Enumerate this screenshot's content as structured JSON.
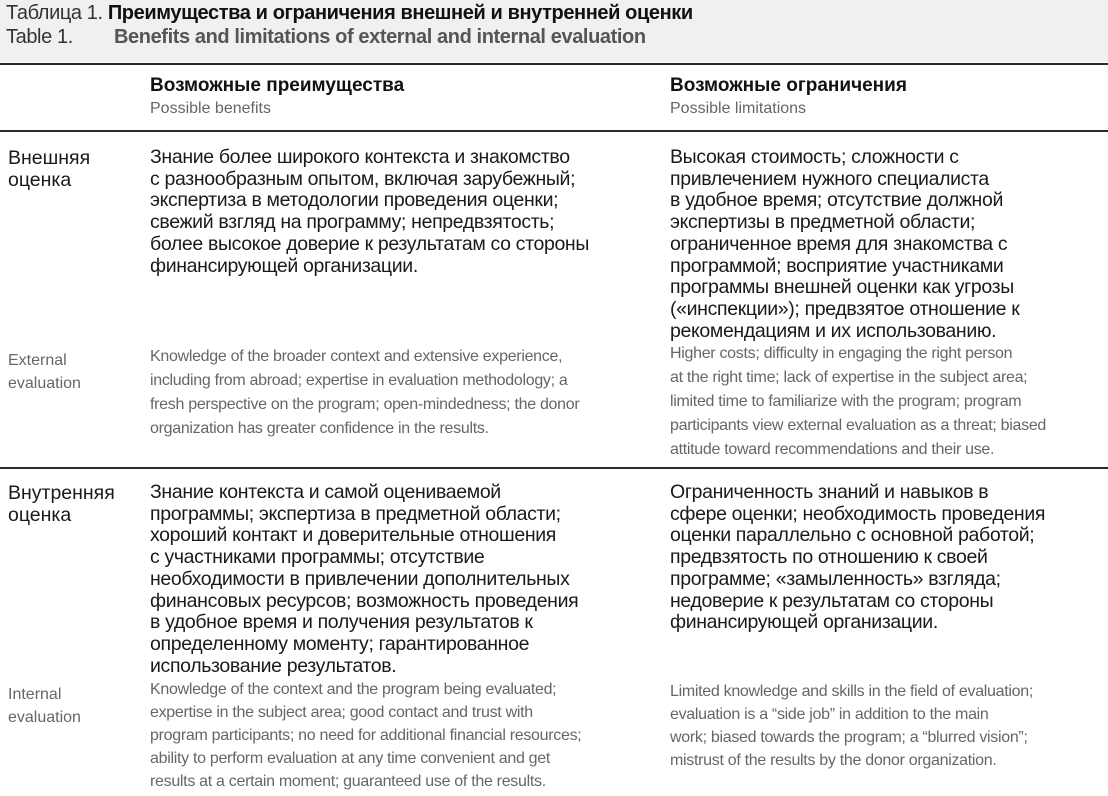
{
  "caption": {
    "ru_label": "Таблица 1. ",
    "ru_title": "Преимущества и ограничения внешней и внутренней оценки",
    "en_label": "Table 1.",
    "en_title": "Benefits and limitations of external and internal evaluation"
  },
  "header": {
    "col1_ru": "Возможные преимущества",
    "col1_en": "Possible benefits",
    "col2_ru": "Возможные ограничения",
    "col2_en": "Possible limitations"
  },
  "rows": [
    {
      "label_ru": [
        "Внешняя",
        "оценка"
      ],
      "label_en": [
        "External",
        "evaluation"
      ],
      "benefits_ru": [
        "Знание более широкого контекста и знакомство",
        "с разнообразным опытом, включая зарубежный;",
        "экспертиза в методологии проведения оценки;",
        "свежий взгляд на программу; непредвзятость;",
        "более высокое доверие к результатам со стороны",
        "финансирующей организации."
      ],
      "benefits_en": [
        "Knowledge of the broader context and extensive experience,",
        "including from abroad; expertise in evaluation methodology; a",
        "fresh perspective on the program; open-mindedness; the donor",
        "organization has greater confidence in the results."
      ],
      "limitations_ru": [
        "Высокая стоимость; сложности с",
        "привлечением нужного специалиста",
        "в удобное время; отсутствие должной",
        "экспертизы в предметной области;",
        "ограниченное время для знакомства с",
        "программой; восприятие участниками",
        "программы внешней оценки как угрозы",
        "(«инспекции»); предвзятое отношение к",
        "рекомендациям и их использованию."
      ],
      "limitations_en": [
        "Higher costs; difficulty in engaging the right person",
        "at the right time; lack of expertise in the subject area;",
        "limited time to familiarize with the program; program",
        "participants view external evaluation as a threat; biased",
        "attitude toward recommendations and their use."
      ]
    },
    {
      "label_ru": [
        "Внутренняя",
        "оценка"
      ],
      "label_en": [
        "Internal",
        "evaluation"
      ],
      "benefits_ru": [
        "Знание контекста и самой оцениваемой",
        "программы; экспертиза в предметной области;",
        "хороший контакт и доверительные отношения",
        "с участниками программы; отсутствие",
        "необходимости в привлечении дополнительных",
        "финансовых ресурсов; возможность проведения",
        "в удобное время и получения результатов к",
        "определенному моменту; гарантированное",
        "использование результатов."
      ],
      "benefits_en": [
        "Knowledge of the context and the program being evaluated;",
        "expertise in the subject area; good contact and trust with",
        "program participants; no need for additional financial resources;",
        "ability to perform evaluation at any time convenient and get",
        "results at a certain moment; guaranteed use of the results."
      ],
      "limitations_ru": [
        "Ограниченность знаний и навыков в",
        "сфере оценки; необходимость проведения",
        "оценки параллельно с основной работой;",
        "предвзятость по отношению к своей",
        "программе; «замыленность» взгляда;",
        "недоверие к результатам со стороны",
        "финансирующей организации."
      ],
      "limitations_en": [
        "Limited knowledge and skills in the field of evaluation;",
        "evaluation is a “side job” in addition to the main",
        "work; biased towards the program; a “blurred vision”;",
        "mistrust of the results by the donor organization."
      ]
    }
  ]
}
